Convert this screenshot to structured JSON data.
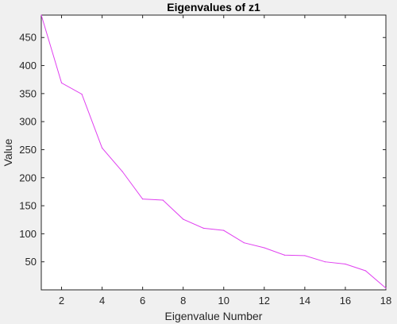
{
  "chart_data": {
    "type": "line",
    "title": "Eigenvalues of z1",
    "xlabel": "Eigenvalue Number",
    "ylabel": "Value",
    "xlim": [
      1,
      18
    ],
    "ylim": [
      0,
      490
    ],
    "xticks": [
      2,
      4,
      6,
      8,
      10,
      12,
      14,
      16,
      18
    ],
    "yticks": [
      50,
      100,
      150,
      200,
      250,
      300,
      350,
      400,
      450
    ],
    "grid": false,
    "series": [
      {
        "color": "#e040f0",
        "x": [
          1,
          2,
          3,
          4,
          5,
          6,
          7,
          8,
          9,
          10,
          11,
          12,
          13,
          14,
          15,
          16,
          17,
          18
        ],
        "values": [
          490,
          369,
          349,
          253,
          211,
          162,
          160,
          126,
          110,
          106,
          84,
          75,
          62,
          61,
          50,
          46,
          34,
          3
        ]
      }
    ]
  },
  "colors": {
    "background": "#f0f0f0",
    "plot_area": "#ffffff",
    "axis": "#262626",
    "line": "#e040f0"
  }
}
